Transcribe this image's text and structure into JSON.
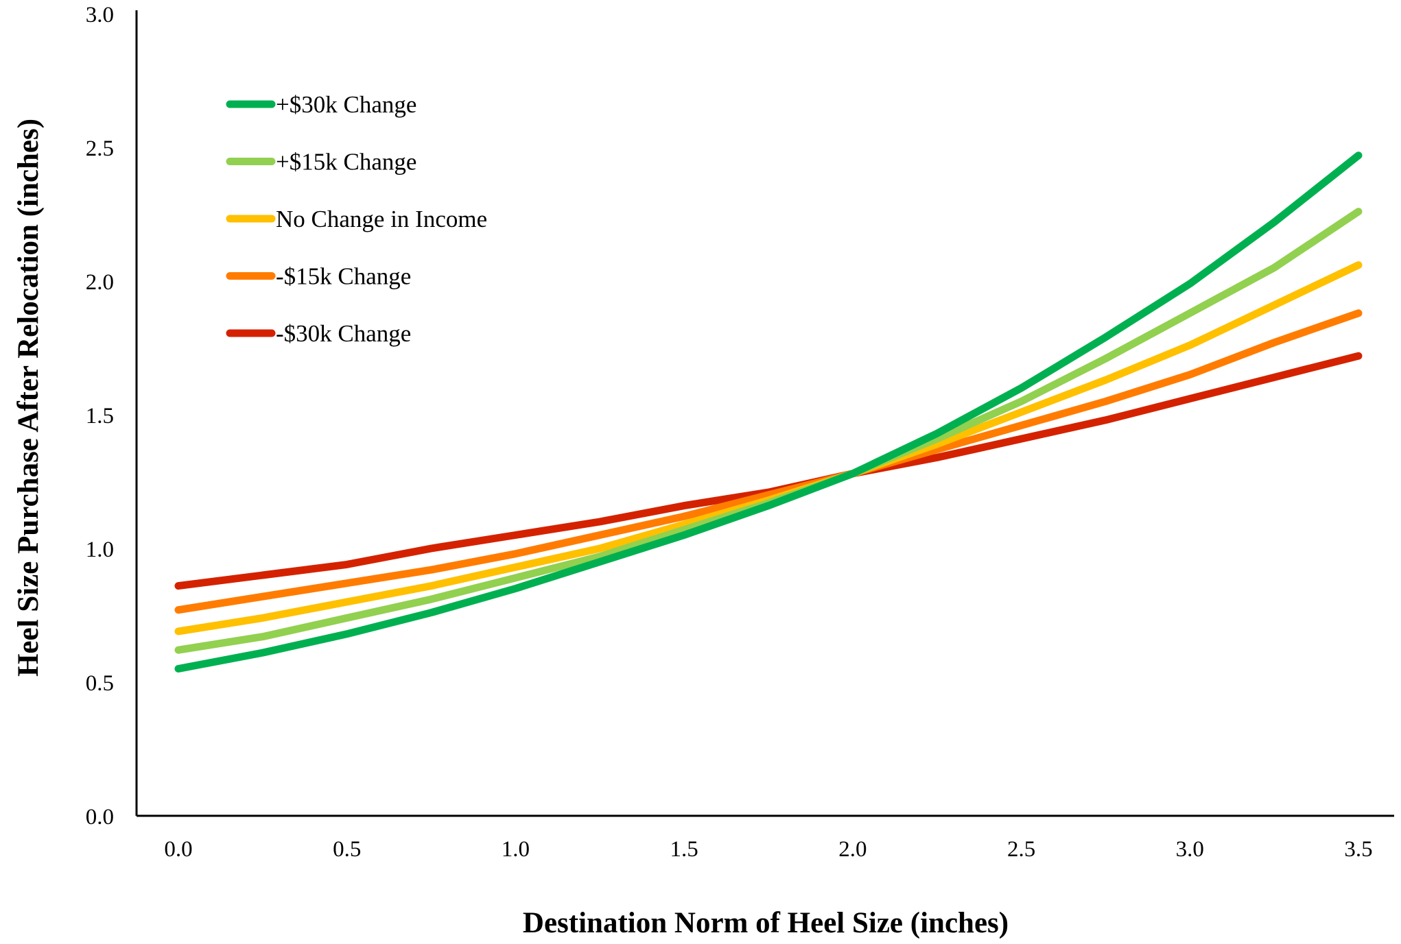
{
  "chart_data": {
    "type": "line",
    "title": "",
    "xlabel": "Destination Norm of Heel Size (inches)",
    "ylabel": "Heel Size Purchase After Relocation (inches)",
    "xlim": [
      -0.1,
      3.6
    ],
    "ylim": [
      0.0,
      3.0
    ],
    "xticks": [
      "0.0",
      "0.5",
      "1.0",
      "1.5",
      "2.0",
      "2.5",
      "3.0",
      "3.5"
    ],
    "yticks": [
      "0.0",
      "0.5",
      "1.0",
      "1.5",
      "2.0",
      "2.5",
      "3.0"
    ],
    "grid": false,
    "legend_position": "top-left",
    "x": [
      0.0,
      0.25,
      0.5,
      0.75,
      1.0,
      1.25,
      1.5,
      1.75,
      2.0,
      2.25,
      2.5,
      2.75,
      3.0,
      3.25,
      3.5
    ],
    "series": [
      {
        "name": "+$30k Change",
        "color": "#00b050",
        "values": [
          0.55,
          0.61,
          0.68,
          0.76,
          0.85,
          0.95,
          1.05,
          1.16,
          1.28,
          1.43,
          1.6,
          1.79,
          1.99,
          2.22,
          2.47
        ]
      },
      {
        "name": "+$15k Change",
        "color": "#92d050",
        "values": [
          0.62,
          0.67,
          0.74,
          0.81,
          0.89,
          0.97,
          1.07,
          1.17,
          1.28,
          1.41,
          1.55,
          1.71,
          1.88,
          2.05,
          2.26
        ]
      },
      {
        "name": "No Change in Income",
        "color": "#ffc000",
        "values": [
          0.69,
          0.74,
          0.8,
          0.86,
          0.93,
          1.0,
          1.09,
          1.18,
          1.28,
          1.39,
          1.51,
          1.63,
          1.76,
          1.91,
          2.06
        ]
      },
      {
        "name": "-$15k Change",
        "color": "#ff7c00",
        "values": [
          0.77,
          0.82,
          0.87,
          0.92,
          0.98,
          1.05,
          1.12,
          1.2,
          1.28,
          1.37,
          1.46,
          1.55,
          1.65,
          1.77,
          1.88
        ]
      },
      {
        "name": "-$30k Change",
        "color": "#d42200",
        "values": [
          0.86,
          0.9,
          0.94,
          1.0,
          1.05,
          1.1,
          1.16,
          1.21,
          1.28,
          1.34,
          1.41,
          1.48,
          1.56,
          1.64,
          1.72
        ]
      }
    ]
  }
}
